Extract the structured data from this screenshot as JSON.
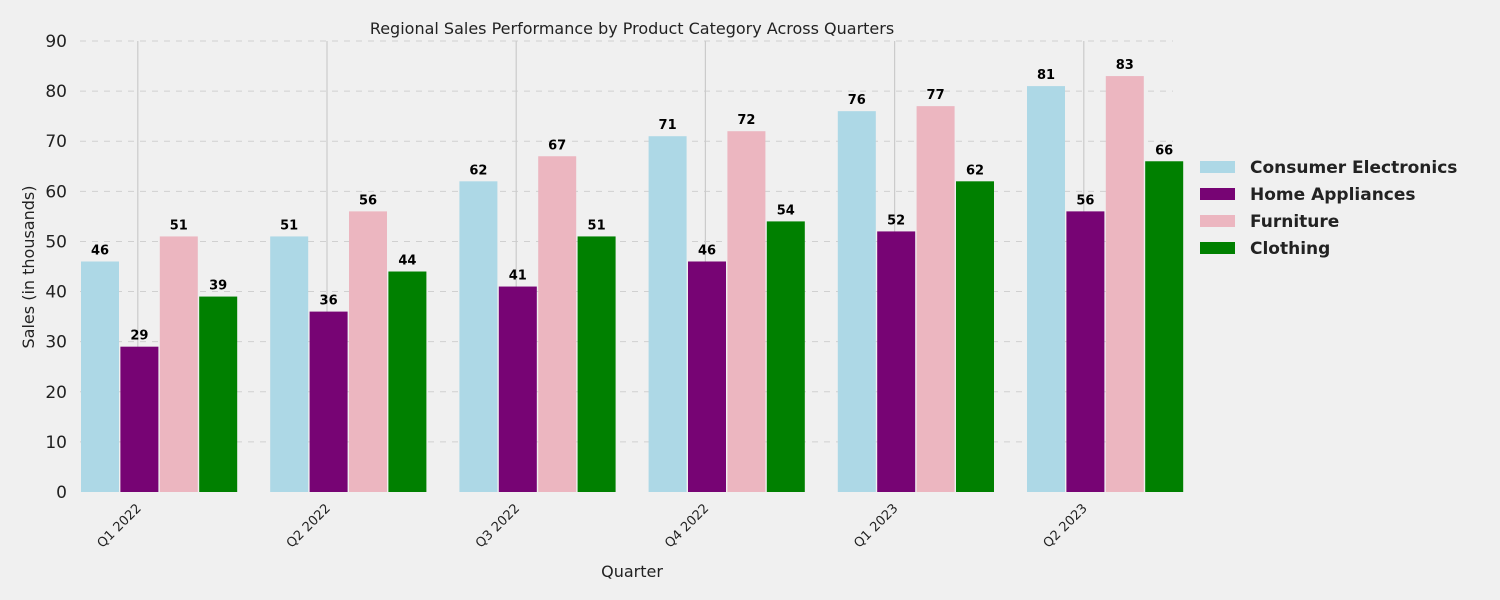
{
  "chart_data": {
    "type": "bar",
    "title": "Regional Sales Performance by Product Category Across Quarters",
    "xlabel": "Quarter",
    "ylabel": "Sales (in thousands)",
    "categories": [
      "Q1 2022",
      "Q2 2022",
      "Q3 2022",
      "Q4 2022",
      "Q1 2023",
      "Q2 2023"
    ],
    "ylim": [
      0,
      90
    ],
    "yticks": [
      "0",
      "10",
      "20",
      "30",
      "40",
      "50",
      "60",
      "70",
      "80",
      "90"
    ],
    "grid": "horizontal-dashed",
    "legend_position": "right",
    "series": [
      {
        "name": "Consumer Electronics",
        "color": "#add8e6",
        "values": [
          46,
          51,
          62,
          71,
          76,
          81
        ]
      },
      {
        "name": "Home Appliances",
        "color": "#770474",
        "values": [
          29,
          36,
          41,
          46,
          52,
          56
        ]
      },
      {
        "name": "Furniture",
        "color": "#ecb6c0",
        "values": [
          51,
          56,
          67,
          72,
          77,
          83
        ]
      },
      {
        "name": "Clothing",
        "color": "#008000",
        "values": [
          39,
          44,
          51,
          54,
          62,
          66
        ]
      }
    ]
  }
}
